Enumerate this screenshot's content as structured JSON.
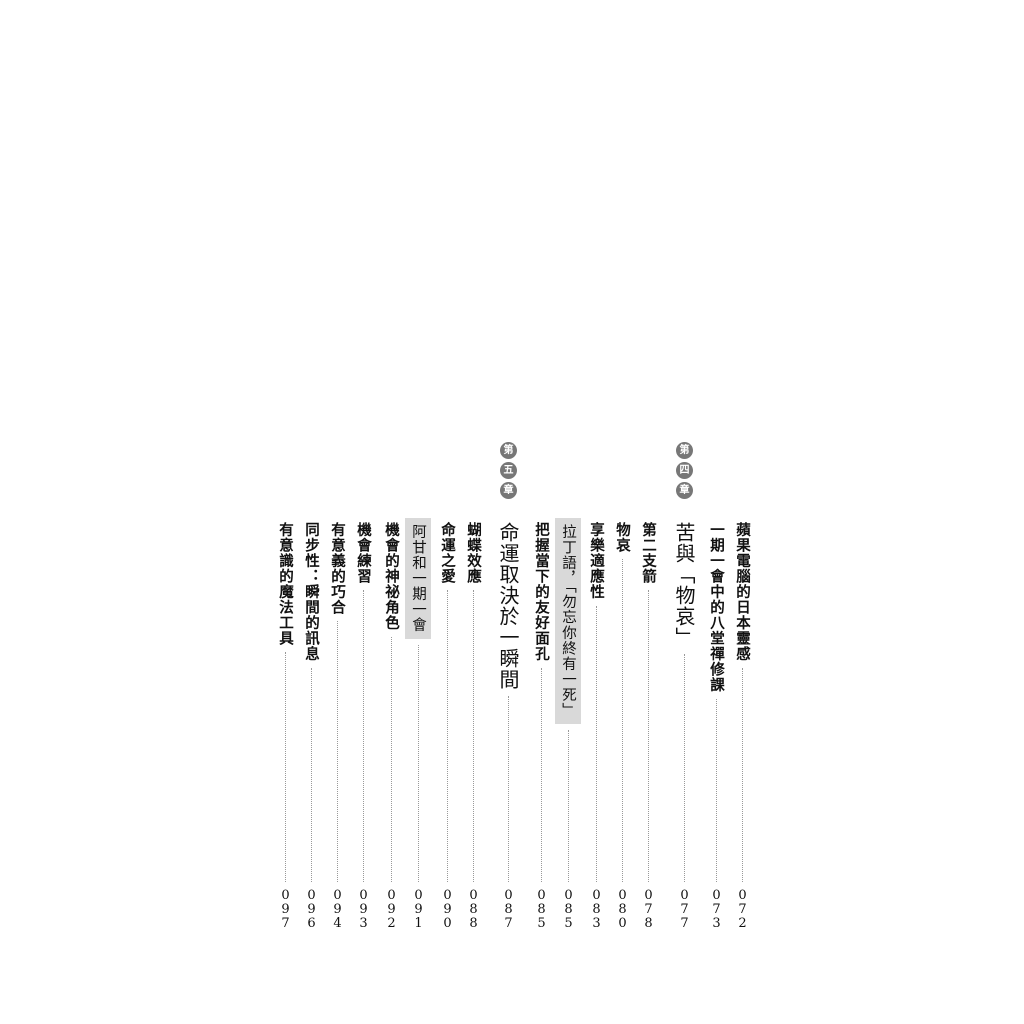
{
  "chapters": [
    {
      "badge": [
        "第",
        "四",
        "章"
      ]
    },
    {
      "badge": [
        "第",
        "五",
        "章"
      ]
    }
  ],
  "entries": [
    {
      "title": "蘋果電腦的日本靈感",
      "page": "072",
      "style": "normal"
    },
    {
      "title": "一期一會中的八堂禪修課",
      "page": "073",
      "style": "normal"
    },
    {
      "title": "苦與「物哀」",
      "page": "077",
      "style": "big"
    },
    {
      "title": "第二支箭",
      "page": "078",
      "style": "normal"
    },
    {
      "title": "物哀",
      "page": "080",
      "style": "normal"
    },
    {
      "title": "享樂適應性",
      "page": "083",
      "style": "normal"
    },
    {
      "title": "拉丁語，「勿忘你終有一死」",
      "page": "085",
      "style": "hl"
    },
    {
      "title": "把握當下的友好面孔",
      "page": "085",
      "style": "normal"
    },
    {
      "title": "命運取決於一瞬間",
      "page": "087",
      "style": "big"
    },
    {
      "title": "蝴蝶效應",
      "page": "088",
      "style": "normal"
    },
    {
      "title": "命運之愛",
      "page": "090",
      "style": "normal"
    },
    {
      "title": "阿甘和一期一會",
      "page": "091",
      "style": "hl"
    },
    {
      "title": "機會的神祕角色",
      "page": "092",
      "style": "normal"
    },
    {
      "title": "機會練習",
      "page": "093",
      "style": "normal"
    },
    {
      "title": "有意義的巧合",
      "page": "094",
      "style": "normal"
    },
    {
      "title": "同步性：瞬間的訊息",
      "page": "096",
      "style": "normal"
    },
    {
      "title": "有意識的魔法工具",
      "page": "097",
      "style": "normal"
    }
  ]
}
